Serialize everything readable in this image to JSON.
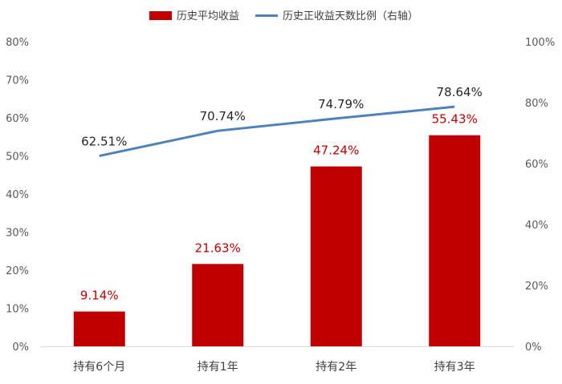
{
  "chart_data": {
    "type": "bar+line",
    "categories": [
      "持有6个月",
      "持有1年",
      "持有2年",
      "持有3年"
    ],
    "series": [
      {
        "name": "历史平均收益",
        "type": "bar",
        "axis": "left",
        "color": "#c00000",
        "values": [
          9.14,
          21.63,
          47.24,
          55.43
        ],
        "labels": [
          "9.14%",
          "21.63%",
          "47.24%",
          "55.43%"
        ]
      },
      {
        "name": "历史正收益天数比例（右轴）",
        "type": "line",
        "axis": "right",
        "color": "#4f81bd",
        "values": [
          62.51,
          70.74,
          74.79,
          78.64
        ],
        "labels": [
          "62.51%",
          "70.74%",
          "74.79%",
          "78.64%"
        ]
      }
    ],
    "y_left": {
      "min": 0,
      "max": 80,
      "ticks": [
        "0%",
        "10%",
        "20%",
        "30%",
        "40%",
        "50%",
        "60%",
        "70%",
        "80%"
      ],
      "tick_values": [
        0,
        10,
        20,
        30,
        40,
        50,
        60,
        70,
        80
      ]
    },
    "y_right": {
      "min": 0,
      "max": 100,
      "ticks": [
        "0%",
        "20%",
        "40%",
        "60%",
        "80%",
        "100%"
      ],
      "tick_values": [
        0,
        20,
        40,
        60,
        80,
        100
      ]
    },
    "grid": false,
    "legend_position": "top"
  }
}
